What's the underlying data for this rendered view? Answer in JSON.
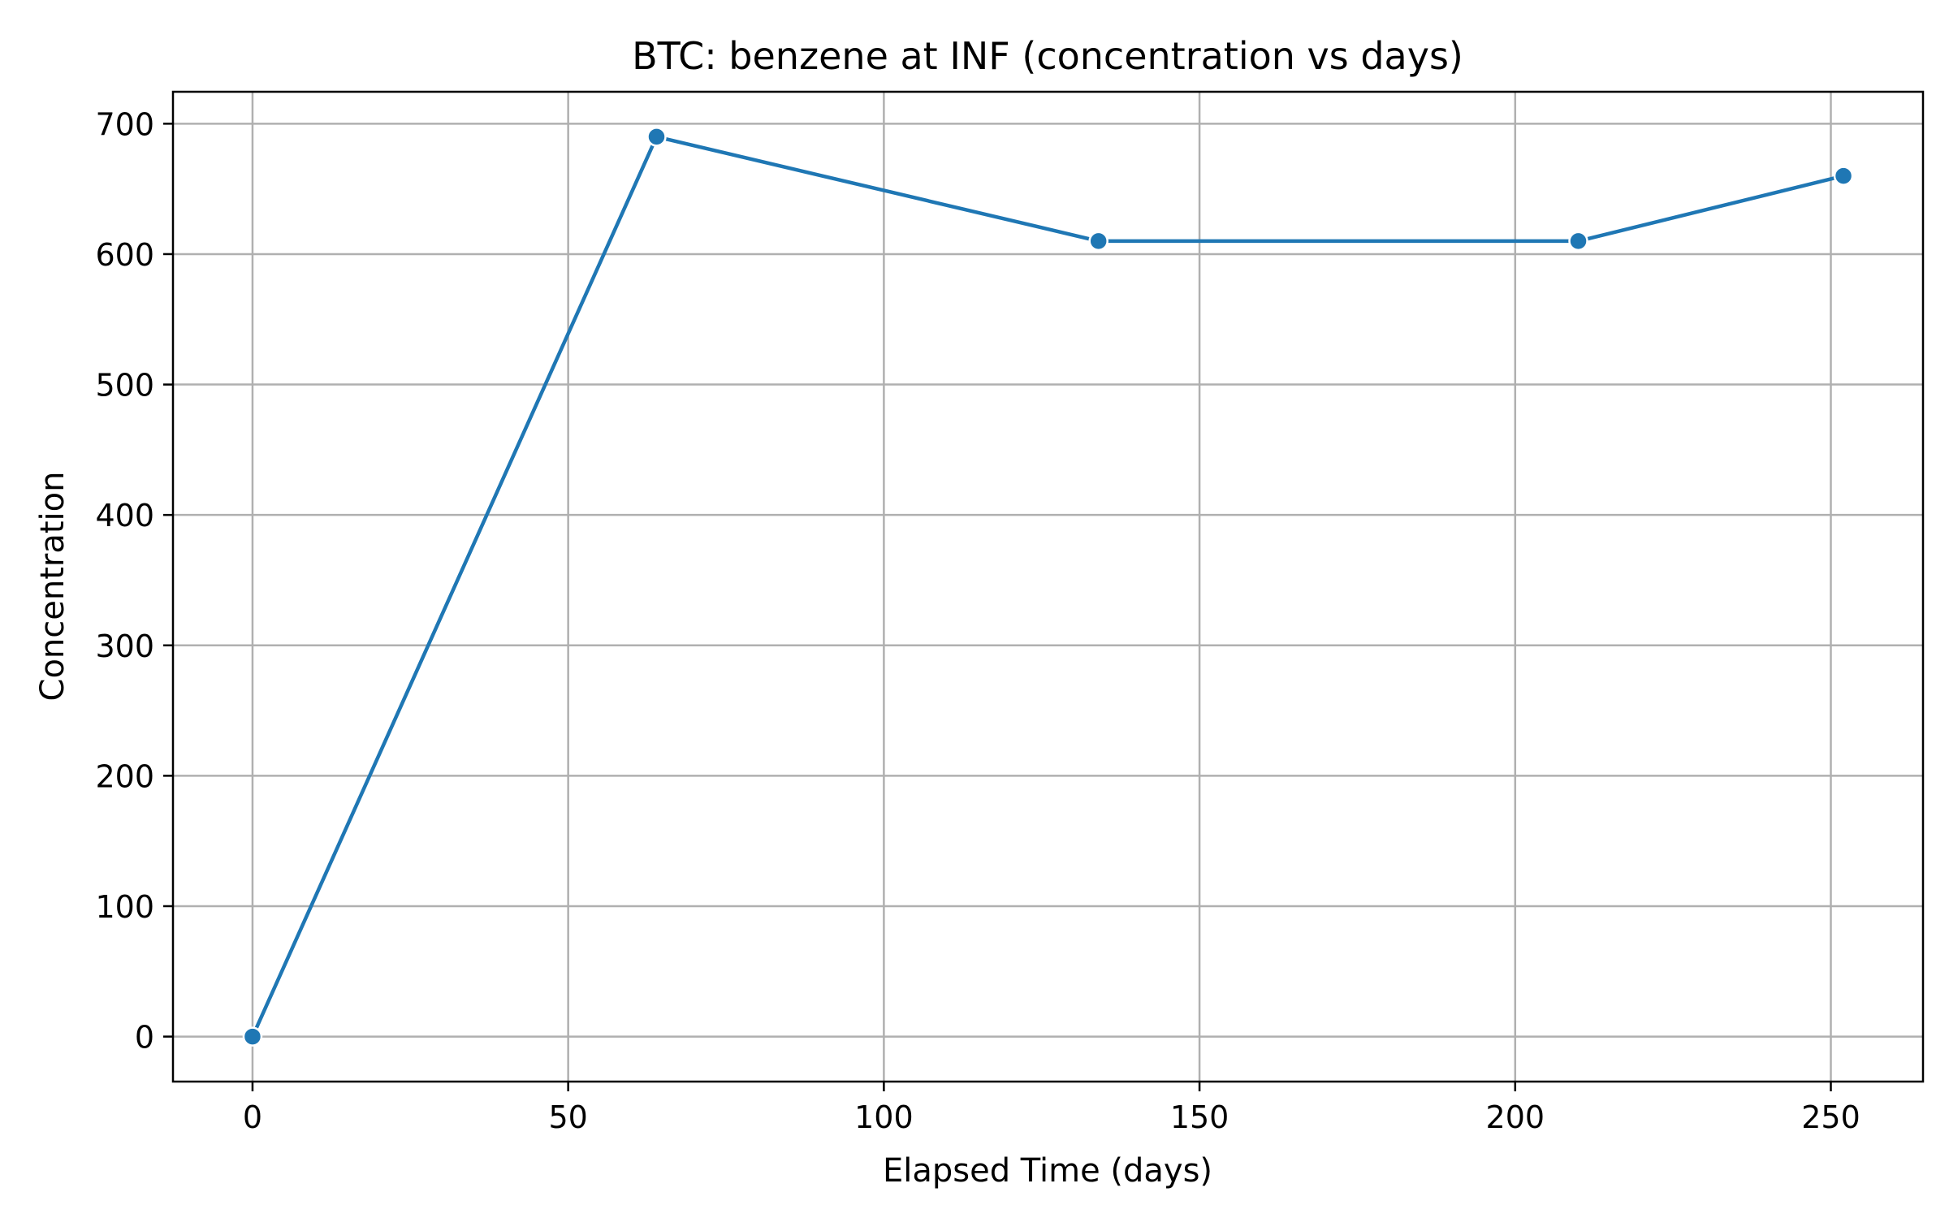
{
  "chart_data": {
    "type": "line",
    "title": "BTC: benzene at INF (concentration vs days)",
    "xlabel": "Elapsed Time (days)",
    "ylabel": "Concentration",
    "xlim": [
      -12.6,
      264.6
    ],
    "ylim": [
      -34.5,
      724.5
    ],
    "xticks": [
      0,
      50,
      100,
      150,
      200,
      250
    ],
    "yticks": [
      0,
      100,
      200,
      300,
      400,
      500,
      600,
      700
    ],
    "grid": true,
    "color": "#1f77b4",
    "series": [
      {
        "x": [
          0,
          64,
          134,
          210,
          252
        ],
        "y": [
          0,
          690,
          610,
          610,
          660
        ]
      }
    ]
  }
}
